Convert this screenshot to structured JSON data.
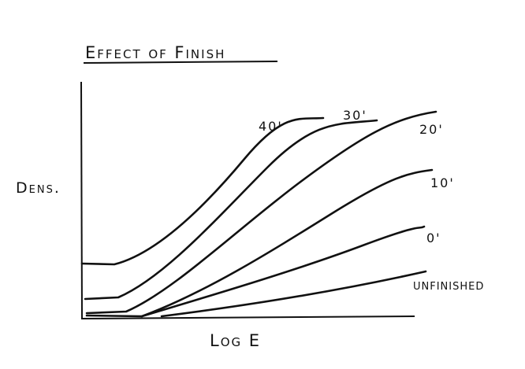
{
  "title": "Effect of Finish",
  "y_axis_label": "Dens.",
  "x_axis_label": "Log E",
  "curve_labels": [
    "40'",
    "30'",
    "20'",
    "10'",
    "0'",
    "UNFINISHED"
  ]
}
